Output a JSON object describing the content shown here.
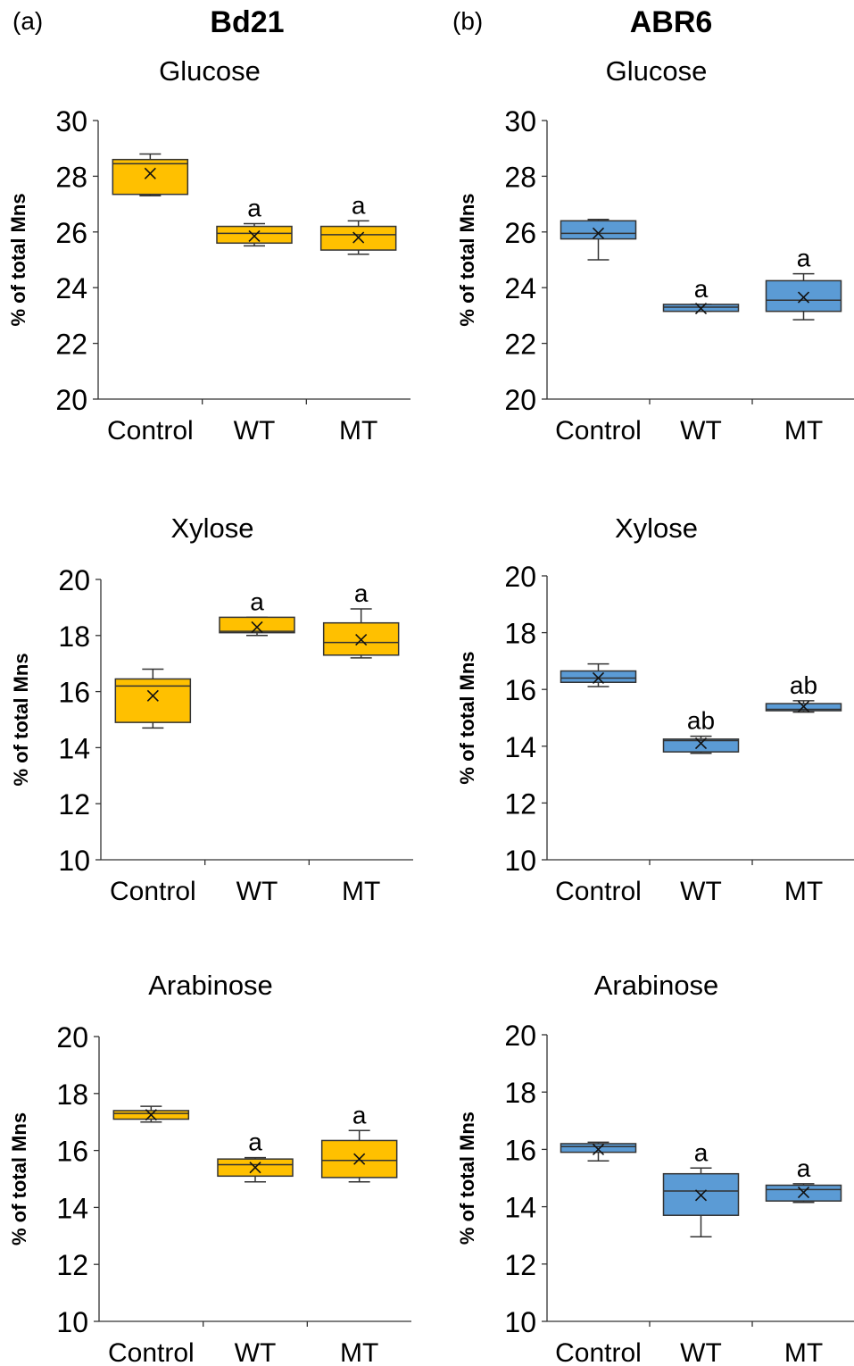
{
  "panel_labels": [
    "(a)",
    "(b)"
  ],
  "column_titles": [
    "Bd21",
    "ABR6"
  ],
  "colors": {
    "Bd21": "#ffc000",
    "ABR6": "#5b9bd5"
  },
  "chart_data": [
    {
      "type": "box",
      "column": "Bd21",
      "title": "Glucose",
      "ylabel": "% of total Mns",
      "ylim": [
        20,
        30
      ],
      "yticks": [
        20,
        22,
        24,
        26,
        28,
        30
      ],
      "categories": [
        "Control",
        "WT",
        "MT"
      ],
      "boxes": [
        {
          "min": 27.3,
          "q1": 27.35,
          "median": 28.45,
          "q3": 28.6,
          "max": 28.8,
          "mean": 28.1,
          "label": ""
        },
        {
          "min": 25.5,
          "q1": 25.6,
          "median": 25.95,
          "q3": 26.2,
          "max": 26.3,
          "mean": 25.85,
          "label": "a"
        },
        {
          "min": 25.2,
          "q1": 25.35,
          "median": 25.9,
          "q3": 26.2,
          "max": 26.4,
          "mean": 25.8,
          "label": "a"
        }
      ]
    },
    {
      "type": "box",
      "column": "ABR6",
      "title": "Glucose",
      "ylabel": "% of total Mns",
      "ylim": [
        20,
        30
      ],
      "yticks": [
        20,
        22,
        24,
        26,
        28,
        30
      ],
      "categories": [
        "Control",
        "WT",
        "MT"
      ],
      "boxes": [
        {
          "min": 25.0,
          "q1": 25.75,
          "median": 25.95,
          "q3": 26.4,
          "max": 26.45,
          "mean": 25.95,
          "label": ""
        },
        {
          "min": 23.15,
          "q1": 23.15,
          "median": 23.3,
          "q3": 23.4,
          "max": 23.4,
          "mean": 23.25,
          "label": "a"
        },
        {
          "min": 22.85,
          "q1": 23.15,
          "median": 23.55,
          "q3": 24.25,
          "max": 24.5,
          "mean": 23.65,
          "label": "a"
        }
      ]
    },
    {
      "type": "box",
      "column": "Bd21",
      "title": "Xylose",
      "ylabel": "% of total Mns",
      "ylim": [
        10,
        20
      ],
      "yticks": [
        10,
        12,
        14,
        16,
        18,
        20
      ],
      "categories": [
        "Control",
        "WT",
        "MT"
      ],
      "boxes": [
        {
          "min": 14.7,
          "q1": 14.9,
          "median": 16.2,
          "q3": 16.45,
          "max": 16.8,
          "mean": 15.85,
          "label": ""
        },
        {
          "min": 18.0,
          "q1": 18.1,
          "median": 18.15,
          "q3": 18.65,
          "max": 18.65,
          "mean": 18.3,
          "label": "a"
        },
        {
          "min": 17.2,
          "q1": 17.3,
          "median": 17.75,
          "q3": 18.45,
          "max": 18.95,
          "mean": 17.85,
          "label": "a"
        }
      ]
    },
    {
      "type": "box",
      "column": "ABR6",
      "title": "Xylose",
      "ylabel": "% of total Mns",
      "ylim": [
        10,
        20
      ],
      "yticks": [
        10,
        12,
        14,
        16,
        18,
        20
      ],
      "categories": [
        "Control",
        "WT",
        "MT"
      ],
      "boxes": [
        {
          "min": 16.1,
          "q1": 16.25,
          "median": 16.4,
          "q3": 16.65,
          "max": 16.9,
          "mean": 16.4,
          "label": ""
        },
        {
          "min": 13.75,
          "q1": 13.8,
          "median": 14.2,
          "q3": 14.25,
          "max": 14.35,
          "mean": 14.1,
          "label": "ab"
        },
        {
          "min": 15.2,
          "q1": 15.25,
          "median": 15.3,
          "q3": 15.5,
          "max": 15.6,
          "mean": 15.4,
          "label": "ab"
        }
      ]
    },
    {
      "type": "box",
      "column": "Bd21",
      "title": "Arabinose",
      "ylabel": "% of total Mns",
      "ylim": [
        10,
        20
      ],
      "yticks": [
        10,
        12,
        14,
        16,
        18,
        20
      ],
      "categories": [
        "Control",
        "WT",
        "MT"
      ],
      "boxes": [
        {
          "min": 17.0,
          "q1": 17.1,
          "median": 17.3,
          "q3": 17.4,
          "max": 17.55,
          "mean": 17.25,
          "label": ""
        },
        {
          "min": 14.9,
          "q1": 15.1,
          "median": 15.5,
          "q3": 15.7,
          "max": 15.75,
          "mean": 15.4,
          "label": "a"
        },
        {
          "min": 14.9,
          "q1": 15.05,
          "median": 15.65,
          "q3": 16.35,
          "max": 16.7,
          "mean": 15.7,
          "label": "a"
        }
      ]
    },
    {
      "type": "box",
      "column": "ABR6",
      "title": "Arabinose",
      "ylabel": "% of total Mns",
      "ylim": [
        10,
        20
      ],
      "yticks": [
        10,
        12,
        14,
        16,
        18,
        20
      ],
      "categories": [
        "Control",
        "WT",
        "MT"
      ],
      "boxes": [
        {
          "min": 15.6,
          "q1": 15.9,
          "median": 16.1,
          "q3": 16.2,
          "max": 16.25,
          "mean": 16.0,
          "label": ""
        },
        {
          "min": 12.95,
          "q1": 13.7,
          "median": 14.55,
          "q3": 15.15,
          "max": 15.35,
          "mean": 14.4,
          "label": "a"
        },
        {
          "min": 14.15,
          "q1": 14.2,
          "median": 14.6,
          "q3": 14.75,
          "max": 14.8,
          "mean": 14.5,
          "label": "a"
        }
      ]
    }
  ]
}
